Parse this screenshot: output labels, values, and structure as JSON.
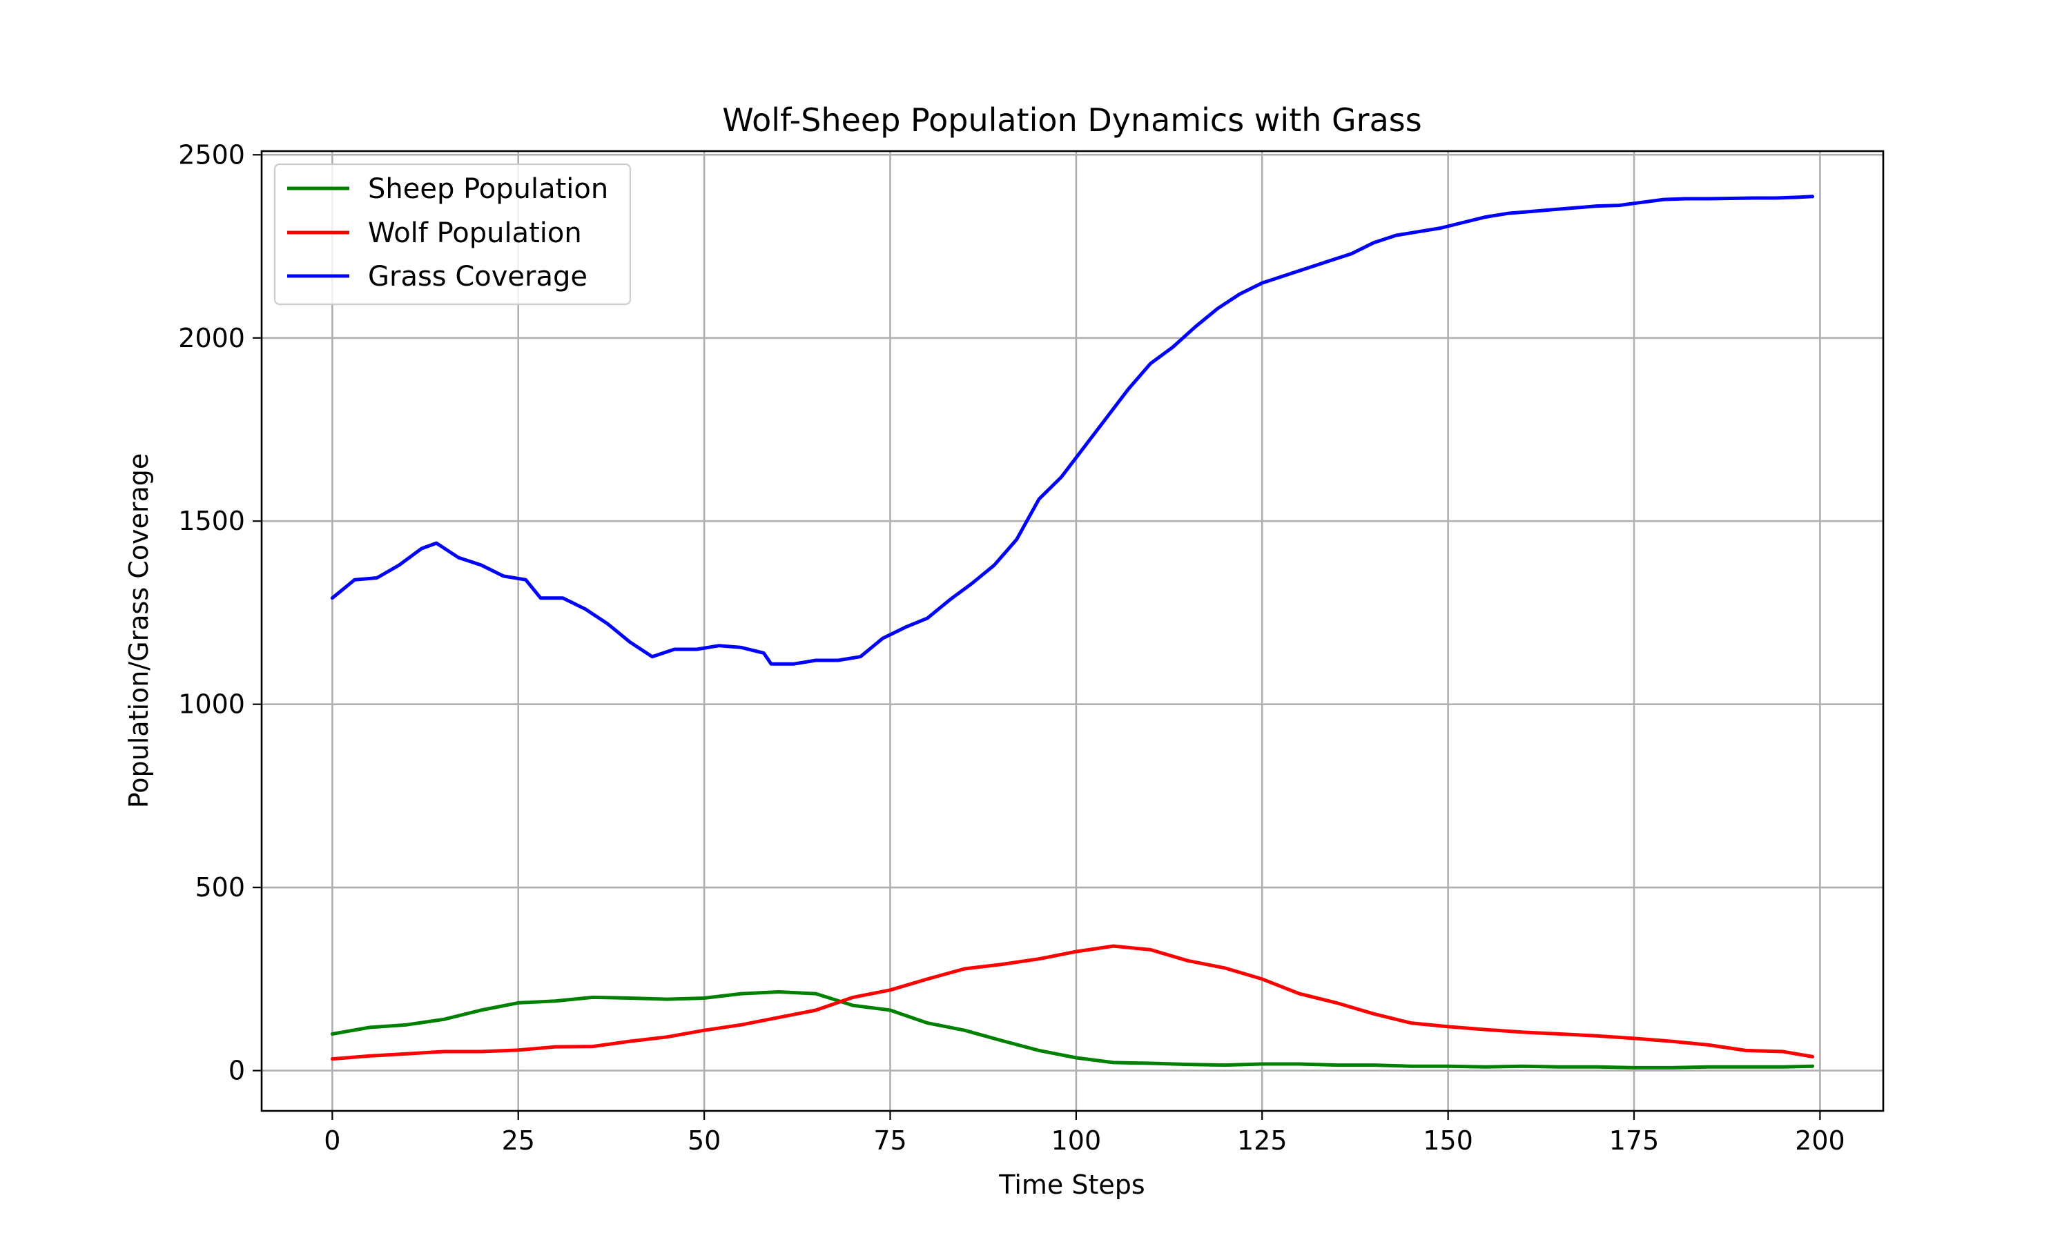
{
  "chart_data": {
    "type": "line",
    "title": "Wolf-Sheep Population Dynamics with Grass",
    "xlabel": "Time Steps",
    "ylabel": "Population/Grass Coverage",
    "xlim": [
      -9.5,
      208.5
    ],
    "ylim": [
      -110,
      2510
    ],
    "xticks": [
      0,
      25,
      50,
      75,
      100,
      125,
      150,
      175,
      200
    ],
    "yticks": [
      0,
      500,
      1000,
      1500,
      2000,
      2500
    ],
    "grid": true,
    "legend_position": "upper left",
    "series": [
      {
        "name": "Sheep Population",
        "color": "#008000",
        "x": [
          0,
          5,
          10,
          15,
          20,
          25,
          30,
          35,
          40,
          45,
          50,
          55,
          60,
          65,
          70,
          75,
          80,
          85,
          90,
          95,
          100,
          105,
          110,
          115,
          120,
          125,
          130,
          135,
          140,
          145,
          150,
          155,
          160,
          165,
          170,
          175,
          180,
          185,
          190,
          195,
          199
        ],
        "y": [
          100,
          118,
          125,
          140,
          165,
          185,
          190,
          200,
          198,
          195,
          198,
          210,
          215,
          210,
          178,
          165,
          130,
          110,
          82,
          55,
          35,
          22,
          20,
          17,
          15,
          18,
          18,
          15,
          15,
          12,
          12,
          10,
          12,
          10,
          10,
          8,
          8,
          10,
          10,
          10,
          12
        ]
      },
      {
        "name": "Wolf Population",
        "color": "#ff0000",
        "x": [
          0,
          5,
          10,
          15,
          20,
          25,
          30,
          35,
          40,
          45,
          50,
          55,
          60,
          65,
          70,
          75,
          80,
          85,
          90,
          95,
          100,
          105,
          110,
          115,
          120,
          125,
          130,
          135,
          140,
          145,
          150,
          155,
          160,
          165,
          170,
          175,
          180,
          185,
          190,
          195,
          199
        ],
        "y": [
          32,
          40,
          46,
          52,
          52,
          56,
          65,
          66,
          80,
          92,
          110,
          125,
          145,
          165,
          200,
          220,
          250,
          278,
          290,
          305,
          325,
          340,
          330,
          300,
          280,
          250,
          210,
          185,
          155,
          130,
          120,
          112,
          105,
          100,
          95,
          88,
          80,
          70,
          55,
          52,
          38
        ]
      },
      {
        "name": "Grass Coverage",
        "color": "#0000ff",
        "x": [
          0,
          3,
          6,
          9,
          12,
          14,
          17,
          20,
          23,
          26,
          28,
          31,
          34,
          37,
          40,
          43,
          46,
          49,
          52,
          55,
          58,
          59,
          62,
          65,
          68,
          71,
          74,
          77,
          80,
          83,
          86,
          89,
          92,
          95,
          98,
          101,
          104,
          107,
          110,
          113,
          116,
          119,
          122,
          125,
          128,
          131,
          134,
          137,
          140,
          143,
          146,
          149,
          152,
          155,
          158,
          161,
          164,
          167,
          170,
          173,
          176,
          179,
          182,
          185,
          188,
          191,
          194,
          197,
          199
        ],
        "y": [
          1290,
          1340,
          1345,
          1380,
          1425,
          1440,
          1400,
          1380,
          1350,
          1340,
          1290,
          1290,
          1260,
          1220,
          1170,
          1130,
          1150,
          1150,
          1160,
          1155,
          1140,
          1110,
          1110,
          1120,
          1120,
          1130,
          1180,
          1210,
          1235,
          1285,
          1330,
          1380,
          1450,
          1560,
          1620,
          1700,
          1780,
          1860,
          1930,
          1975,
          2030,
          2080,
          2120,
          2150,
          2170,
          2190,
          2210,
          2230,
          2260,
          2280,
          2290,
          2300,
          2315,
          2330,
          2340,
          2345,
          2350,
          2355,
          2360,
          2362,
          2370,
          2378,
          2380,
          2380,
          2381,
          2382,
          2382,
          2384,
          2386
        ]
      }
    ]
  }
}
